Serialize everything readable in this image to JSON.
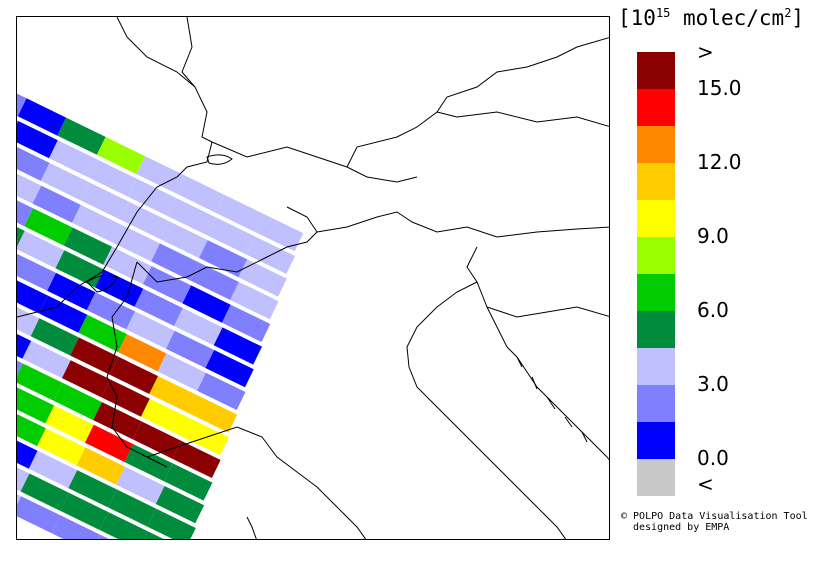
{
  "legend": {
    "unit_prefix": "[10",
    "unit_exp": "15",
    "unit_suffix": " molec/cm",
    "unit_sq": "2",
    "unit_close": "]",
    "colors": [
      "#c8c8c8",
      "#0000ff",
      "#8080ff",
      "#c0c0ff",
      "#008c3c",
      "#00cc00",
      "#99ff00",
      "#ffff00",
      "#ffcc00",
      "#ff8800",
      "#ff0000",
      "#8b0000"
    ],
    "ticks": [
      {
        "text": ">",
        "level": 12
      },
      {
        "text": "15.0",
        "level": 11
      },
      {
        "text": "12.0",
        "level": 9
      },
      {
        "text": "9.0",
        "level": 7
      },
      {
        "text": "6.0",
        "level": 5
      },
      {
        "text": "3.0",
        "level": 3
      },
      {
        "text": "0.0",
        "level": 1
      },
      {
        "text": "<",
        "level": 0
      }
    ]
  },
  "credit": {
    "line1": "© POLPO Data Visualisation Tool",
    "line2": "designed by EMPA"
  },
  "swath": {
    "rows": [
      [
        2,
        1,
        4,
        6,
        3,
        3,
        3,
        3
      ],
      [
        2,
        1,
        3,
        3,
        3,
        3,
        3,
        3
      ],
      [
        2,
        2,
        3,
        3,
        3,
        3,
        2,
        3
      ],
      [
        3,
        3,
        2,
        3,
        3,
        2,
        2,
        3
      ],
      [
        2,
        2,
        5,
        4,
        3,
        2,
        1,
        2
      ],
      [
        3,
        4,
        3,
        4,
        1,
        2,
        3,
        1
      ],
      [
        2,
        5,
        2,
        1,
        2,
        3,
        2,
        1
      ],
      [
        4,
        5,
        1,
        1,
        5,
        9,
        3,
        2
      ],
      [
        4,
        4,
        3,
        4,
        11,
        11,
        8,
        8
      ],
      [
        4,
        4,
        1,
        3,
        11,
        11,
        7,
        7
      ],
      [
        5,
        4,
        2,
        5,
        5,
        11,
        11,
        11
      ],
      [
        4,
        5,
        1,
        5,
        7,
        10,
        4,
        4
      ],
      [
        3,
        2,
        1,
        5,
        7,
        8,
        3,
        4
      ],
      [
        1,
        2,
        0,
        1,
        3,
        4,
        4,
        4
      ],
      [
        2,
        2,
        2,
        3,
        4,
        4,
        4,
        4
      ],
      [
        3,
        3,
        3,
        3,
        2,
        2,
        2,
        2
      ]
    ]
  }
}
